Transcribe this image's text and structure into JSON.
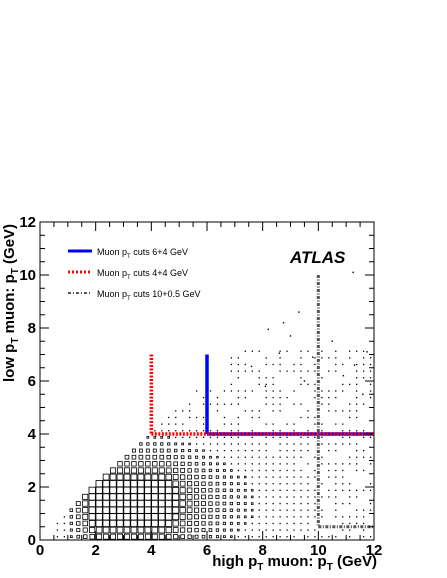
{
  "chart_data": {
    "type": "heatmap",
    "title": "",
    "xlabel": "high p_T muon: p_T (GeV)",
    "ylabel": "low p_T muon: p_T (GeV)",
    "xlim": [
      0,
      12
    ],
    "ylim": [
      0,
      12
    ],
    "xticks": [
      "0",
      "2",
      "4",
      "6",
      "8",
      "10",
      "12"
    ],
    "yticks": [
      "0",
      "2",
      "4",
      "6",
      "8",
      "10",
      "12"
    ],
    "bin_width_gev": 0.25,
    "grid": false,
    "annotation": "ATLAS",
    "legend_position": "top-left",
    "legend": [
      {
        "label": "Muon p_T cuts 6+4 GeV",
        "color": "#0000ff",
        "style": "solid"
      },
      {
        "label": "Muon p_T cuts 4+4 GeV",
        "color": "#ff0000",
        "style": "dotted"
      },
      {
        "label": "Muon p_T cuts 10+0.5 GeV",
        "color": "#555555",
        "style": "dash-dot"
      }
    ],
    "cut_lines": [
      {
        "name": "Muon p_T cuts 6+4 GeV",
        "color": "#0000ff",
        "style": "solid",
        "segments": [
          [
            [
              6,
              7
            ],
            [
              6,
              4
            ]
          ],
          [
            [
              6,
              4
            ],
            [
              12,
              4
            ]
          ]
        ]
      },
      {
        "name": "Muon p_T cuts 4+4 GeV",
        "color": "#ff0000",
        "style": "dotted",
        "segments": [
          [
            [
              4,
              7
            ],
            [
              4,
              4
            ]
          ],
          [
            [
              4,
              4
            ],
            [
              12,
              4
            ]
          ]
        ]
      },
      {
        "name": "Muon p_T cuts 10+0.5 GeV",
        "color": "#555555",
        "style": "dash-dot",
        "segments": [
          [
            [
              10,
              10
            ],
            [
              10,
              0.5
            ]
          ],
          [
            [
              10,
              0.5
            ],
            [
              12,
              0.5
            ]
          ]
        ]
      }
    ],
    "density_model": "box size decreases with distance from peak near (4.5, 1.5) GeV; entries only where low pT <= high pT",
    "sparse_points": [
      [
        11.25,
        10.1
      ],
      [
        9.3,
        8.6
      ],
      [
        8.75,
        8.2
      ],
      [
        8.2,
        7.95
      ],
      [
        9.0,
        7.7
      ],
      [
        10.5,
        7.5
      ],
      [
        11.75,
        7.1
      ],
      [
        8.6,
        7.05
      ],
      [
        9.8,
        6.9
      ],
      [
        11.3,
        6.6
      ],
      [
        7.6,
        6.55
      ],
      [
        10.9,
        6.2
      ],
      [
        9.5,
        6.0
      ],
      [
        8.1,
        5.8
      ],
      [
        11.6,
        5.5
      ]
    ]
  }
}
